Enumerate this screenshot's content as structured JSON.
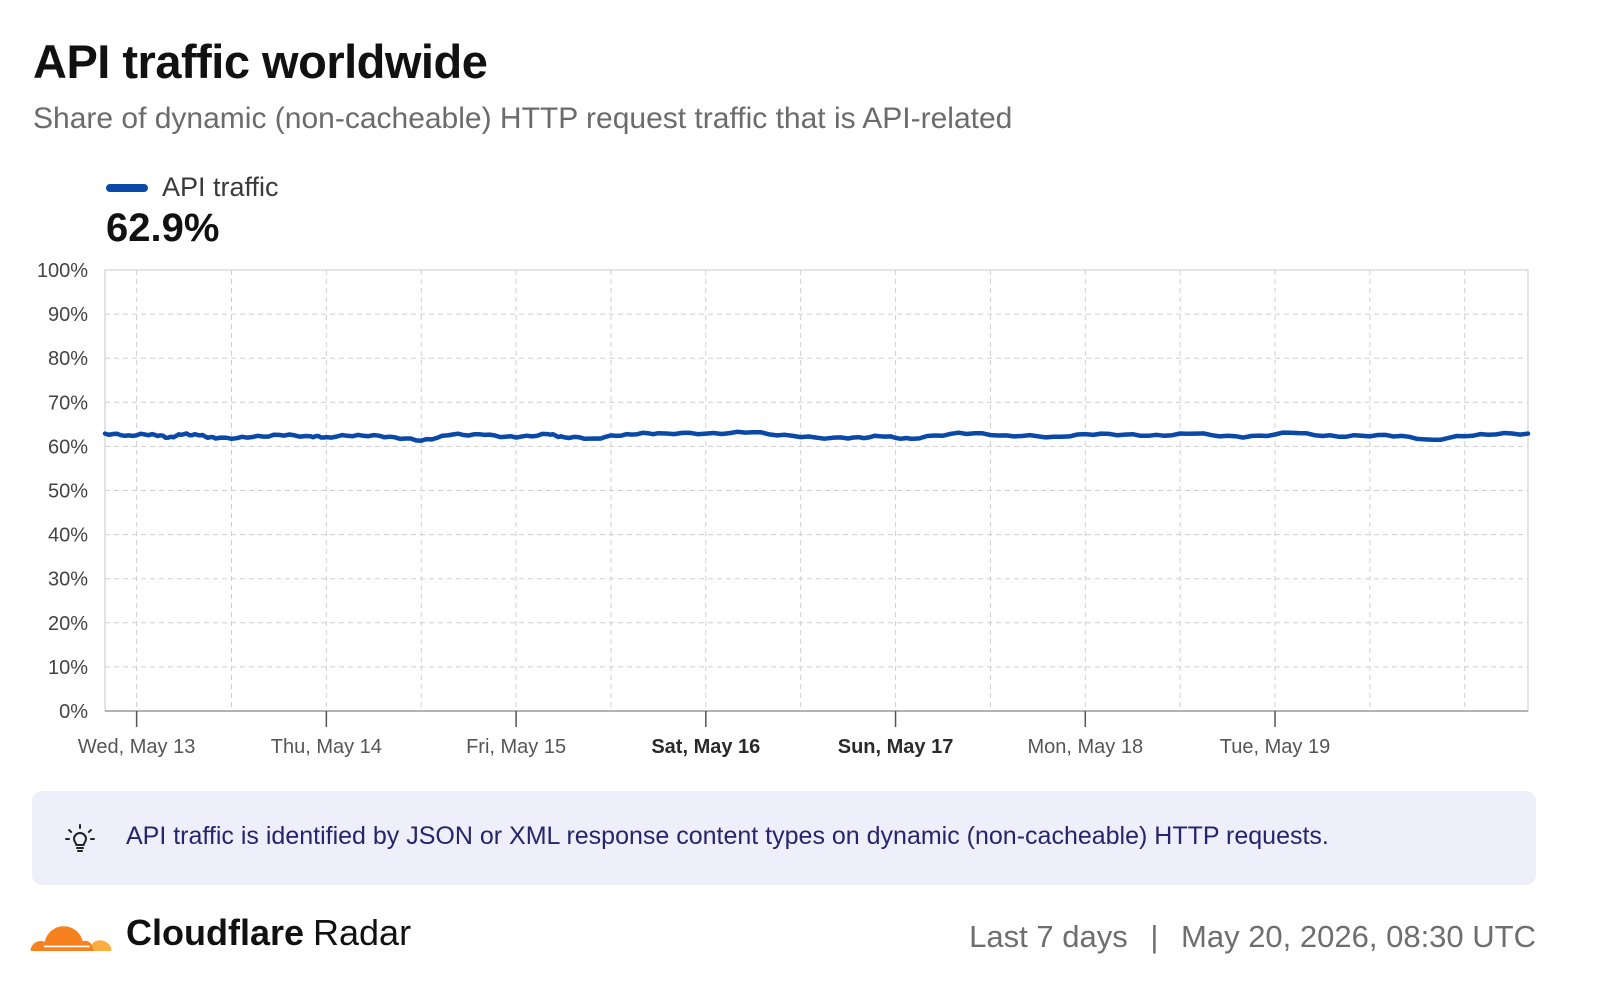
{
  "header": {
    "title": "API traffic worldwide",
    "subtitle": "Share of dynamic (non-cacheable) HTTP request traffic that is API-related"
  },
  "legend": {
    "label": "API traffic",
    "color": "#0a49a8",
    "current_value": "62.9%"
  },
  "chart_data": {
    "type": "line",
    "title": "API traffic worldwide",
    "subtitle": "Share of dynamic (non-cacheable) HTTP request traffic that is API-related",
    "xlabel": "",
    "ylabel": "",
    "ylim": [
      0,
      100
    ],
    "xlim": [
      "2026-05-12T20:00Z",
      "2026-05-20T08:00Z"
    ],
    "y_ticks": [
      "0%",
      "10%",
      "20%",
      "30%",
      "40%",
      "50%",
      "60%",
      "70%",
      "80%",
      "90%",
      "100%"
    ],
    "x_ticks": [
      {
        "label": "Wed, May 13",
        "t": "2026-05-13T00:00Z",
        "bold": false
      },
      {
        "label": "Thu, May 14",
        "t": "2026-05-14T00:00Z",
        "bold": false
      },
      {
        "label": "Fri, May 15",
        "t": "2026-05-15T00:00Z",
        "bold": false
      },
      {
        "label": "Sat, May 16",
        "t": "2026-05-16T00:00Z",
        "bold": true
      },
      {
        "label": "Sun, May 17",
        "t": "2026-05-17T00:00Z",
        "bold": true
      },
      {
        "label": "Mon, May 18",
        "t": "2026-05-18T00:00Z",
        "bold": false
      },
      {
        "label": "Tue, May 19",
        "t": "2026-05-19T00:00Z",
        "bold": false
      }
    ],
    "grid": true,
    "legend_position": "top-left",
    "series": [
      {
        "name": "API traffic",
        "color": "#0a49a8",
        "x": [
          "2026-05-12T20:00Z",
          "2026-05-12T23:00Z",
          "2026-05-13T02:00Z",
          "2026-05-13T04:00Z",
          "2026-05-13T06:00Z",
          "2026-05-13T08:00Z",
          "2026-05-13T10:00Z",
          "2026-05-13T14:00Z",
          "2026-05-13T18:00Z",
          "2026-05-13T22:00Z",
          "2026-05-14T00:00Z",
          "2026-05-14T04:00Z",
          "2026-05-14T08:00Z",
          "2026-05-14T12:00Z",
          "2026-05-14T16:00Z",
          "2026-05-14T20:00Z",
          "2026-05-15T00:00Z",
          "2026-05-15T04:00Z",
          "2026-05-15T06:00Z",
          "2026-05-15T10:00Z",
          "2026-05-15T14:00Z",
          "2026-05-15T18:00Z",
          "2026-05-16T00:00Z",
          "2026-05-16T06:00Z",
          "2026-05-16T12:00Z",
          "2026-05-16T18:00Z",
          "2026-05-16T22:00Z",
          "2026-05-17T02:00Z",
          "2026-05-17T08:00Z",
          "2026-05-17T14:00Z",
          "2026-05-17T20:00Z",
          "2026-05-18T02:00Z",
          "2026-05-18T08:00Z",
          "2026-05-18T14:00Z",
          "2026-05-18T20:00Z",
          "2026-05-19T02:00Z",
          "2026-05-19T08:00Z",
          "2026-05-19T14:00Z",
          "2026-05-19T20:00Z",
          "2026-05-20T02:00Z",
          "2026-05-20T08:00Z"
        ],
        "values": [
          62.9,
          62.5,
          62.8,
          62.0,
          62.8,
          62.5,
          61.8,
          62.0,
          62.6,
          62.3,
          62.1,
          62.6,
          62.2,
          61.3,
          62.7,
          62.6,
          62.0,
          62.8,
          62.1,
          61.8,
          62.8,
          63.0,
          62.9,
          63.2,
          62.1,
          61.8,
          62.3,
          61.7,
          63.1,
          62.5,
          62.2,
          62.9,
          62.4,
          62.9,
          62.0,
          63.1,
          62.2,
          62.6,
          61.5,
          62.8,
          62.9
        ]
      }
    ]
  },
  "note": {
    "icon": "lightbulb-icon",
    "text": "API traffic is identified by JSON or XML response content types on dynamic (non-cacheable) HTTP requests."
  },
  "footer": {
    "brand": "Cloudflare",
    "product": "Radar",
    "range": "Last 7 days",
    "separator": "|",
    "timestamp": "May 20, 2026, 08:30 UTC",
    "logo_colors": [
      "#f6821f",
      "#fbad41"
    ]
  }
}
